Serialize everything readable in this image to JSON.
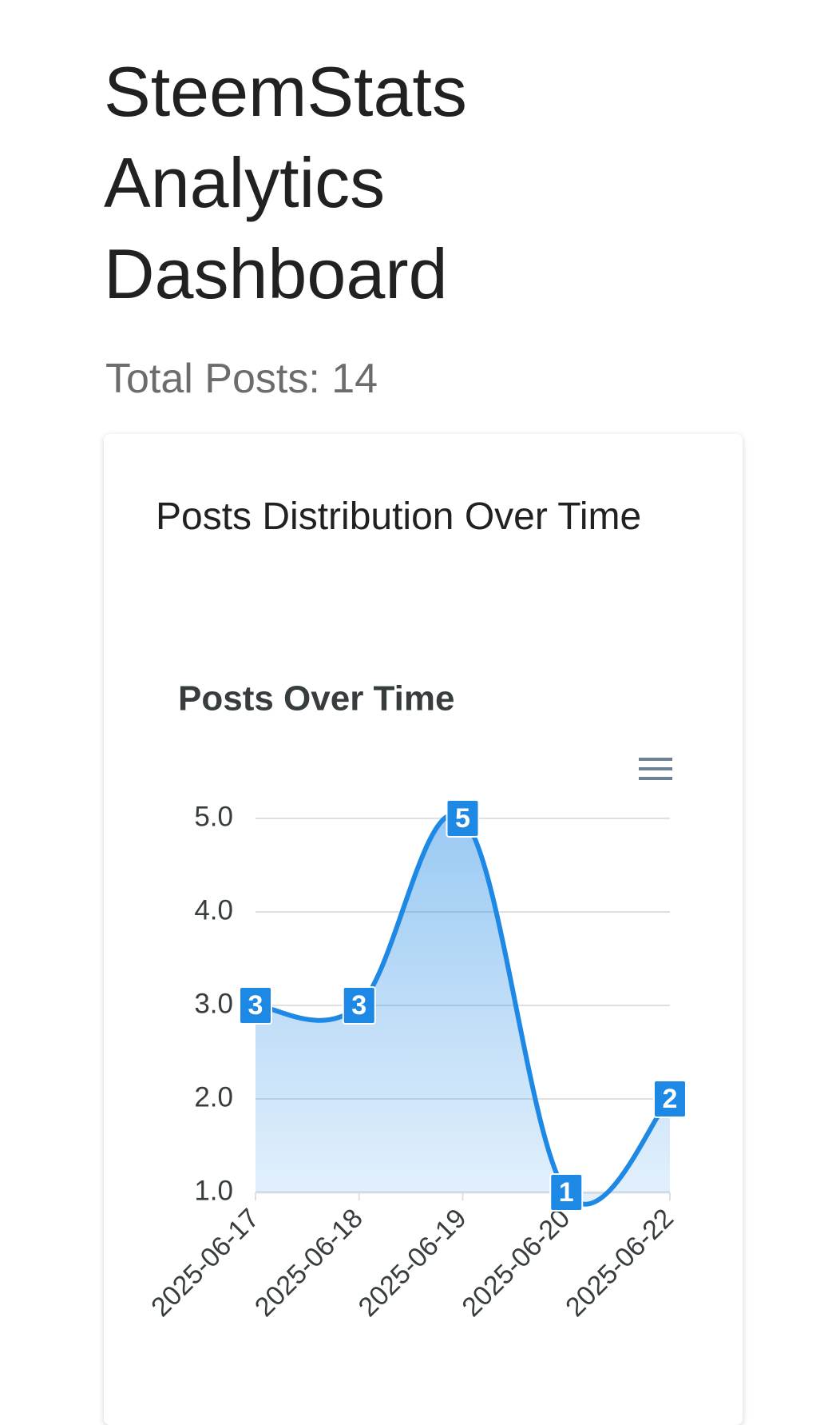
{
  "header": {
    "title": "SteemStats Analytics Dashboard",
    "total_posts": "Total Posts: 14"
  },
  "card": {
    "title": "Posts Distribution Over Time"
  },
  "chart_data": {
    "type": "area",
    "title": "Posts Over Time",
    "categories": [
      "2025-06-17",
      "2025-06-18",
      "2025-06-19",
      "2025-06-20",
      "2025-06-22"
    ],
    "values": [
      3,
      3,
      5,
      1,
      2
    ],
    "color": "#1e88e5",
    "ylim": [
      1,
      5
    ],
    "yticks": [
      {
        "value": 1,
        "label": "1.0"
      },
      {
        "value": 2,
        "label": "2.0"
      },
      {
        "value": 3,
        "label": "3.0"
      },
      {
        "value": 4,
        "label": "4.0"
      },
      {
        "value": 5,
        "label": "5.0"
      }
    ],
    "grid": true
  }
}
